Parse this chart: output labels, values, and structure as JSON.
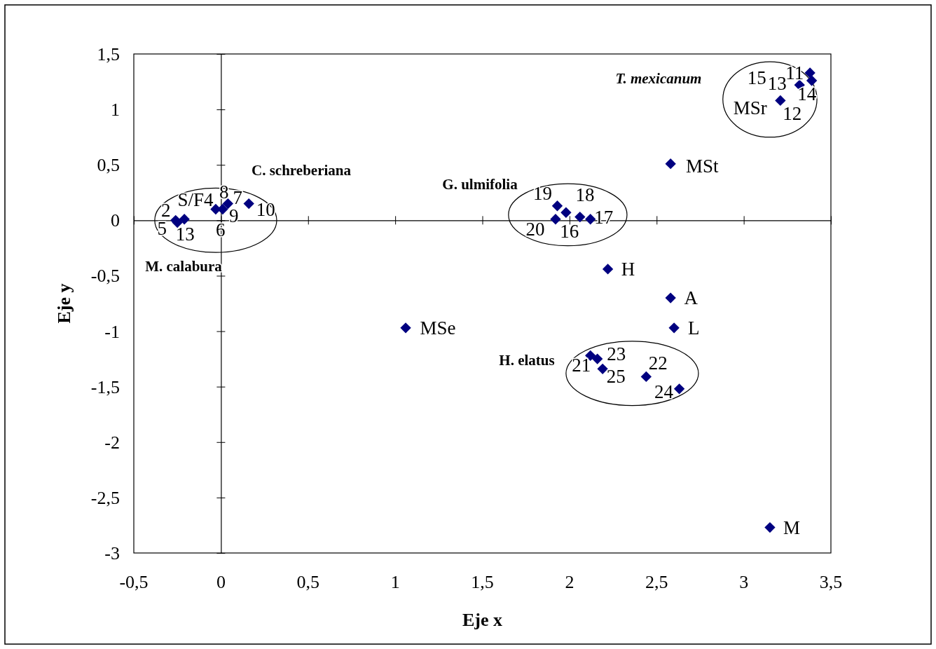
{
  "chart_data": {
    "type": "scatter",
    "xlabel": "Eje x",
    "ylabel": "Eje y",
    "marker": "diamond",
    "xlim": [
      -0.5,
      3.5
    ],
    "ylim": [
      -3,
      1.5
    ],
    "xticks": [
      {
        "value": -0.5,
        "label": "-0,5"
      },
      0,
      {
        "value": 0.5,
        "label": "0,5"
      },
      1,
      {
        "value": 1.5,
        "label": "1,5"
      },
      2,
      {
        "value": 2.5,
        "label": "2,5"
      },
      3,
      {
        "value": 3.5,
        "label": "3,5"
      }
    ],
    "yticks": [
      -3,
      {
        "value": -2.5,
        "label": "-2,5"
      },
      -2,
      {
        "value": -1.5,
        "label": "-1,5"
      },
      -1,
      {
        "value": -0.5,
        "label": "-0,5"
      },
      0,
      {
        "value": 0.5,
        "label": "0,5"
      },
      1,
      {
        "value": 1.5,
        "label": "1,5"
      }
    ],
    "series": [
      {
        "color": "#000080",
        "x": [
          -0.26,
          -0.25,
          -0.21,
          -0.03,
          0.01,
          0.04,
          0.16,
          1.93,
          1.98,
          1.92,
          2.06,
          2.12,
          3.38,
          3.39,
          3.32,
          3.21,
          2.12,
          2.16,
          2.19,
          2.44,
          2.63,
          2.58,
          2.22,
          2.58,
          2.6,
          1.06,
          3.15
        ],
        "values": [
          0.0,
          -0.02,
          0.01,
          0.1,
          0.1,
          0.15,
          0.15,
          0.13,
          0.07,
          0.01,
          0.03,
          0.01,
          1.33,
          1.26,
          1.22,
          1.08,
          -1.22,
          -1.25,
          -1.34,
          -1.41,
          -1.52,
          0.51,
          -0.44,
          -0.7,
          -0.97,
          -0.97,
          -2.77
        ]
      }
    ],
    "annotations": [
      "T. mexicanum",
      "C. schreberiana",
      "G. ulmifolia",
      "M. calabura",
      "H. elatus",
      {
        "text": "2",
        "x": -0.26,
        "y": 0.0
      },
      {
        "text": "S/F4",
        "x": -0.03,
        "y": 0.1
      },
      {
        "text": "8",
        "x": 0.01,
        "y": 0.1
      },
      {
        "text": "7",
        "x": 0.04,
        "y": 0.15
      },
      {
        "text": "10",
        "x": 0.16,
        "y": 0.15
      },
      {
        "text": "9",
        "x": 0.01,
        "y": 0.1
      },
      {
        "text": "5",
        "x": -0.25,
        "y": -0.02
      },
      {
        "text": "13",
        "x": -0.21,
        "y": 0.01
      },
      {
        "text": "6",
        "x": 0.01,
        "y": 0.1
      },
      {
        "text": "19",
        "x": 1.93,
        "y": 0.13
      },
      {
        "text": "18",
        "x": 1.98,
        "y": 0.07
      },
      {
        "text": "17",
        "x": 2.12,
        "y": 0.01
      },
      {
        "text": "20",
        "x": 1.92,
        "y": 0.01
      },
      {
        "text": "16",
        "x": 2.06,
        "y": 0.03
      },
      {
        "text": "15",
        "x": 3.32,
        "y": 1.22
      },
      {
        "text": "13",
        "x": 3.32,
        "y": 1.22
      },
      {
        "text": "11",
        "x": 3.38,
        "y": 1.33
      },
      {
        "text": "14",
        "x": 3.39,
        "y": 1.26
      },
      {
        "text": "MSr",
        "x": 3.21,
        "y": 1.08
      },
      {
        "text": "12",
        "x": 3.21,
        "y": 1.08
      },
      {
        "text": "21",
        "x": 2.12,
        "y": -1.22
      },
      {
        "text": "23",
        "x": 2.16,
        "y": -1.25
      },
      {
        "text": "25",
        "x": 2.19,
        "y": -1.34
      },
      {
        "text": "22",
        "x": 2.44,
        "y": -1.41
      },
      {
        "text": "24",
        "x": 2.63,
        "y": -1.52
      },
      {
        "text": "MSt",
        "x": 2.58,
        "y": 0.51
      },
      {
        "text": "H",
        "x": 2.22,
        "y": -0.44
      },
      {
        "text": "A",
        "x": 2.58,
        "y": -0.7
      },
      {
        "text": "L",
        "x": 2.6,
        "y": -0.97
      },
      {
        "text": "MSe",
        "x": 1.06,
        "y": -0.97
      },
      {
        "text": "M",
        "x": 3.15,
        "y": -2.77
      }
    ]
  }
}
